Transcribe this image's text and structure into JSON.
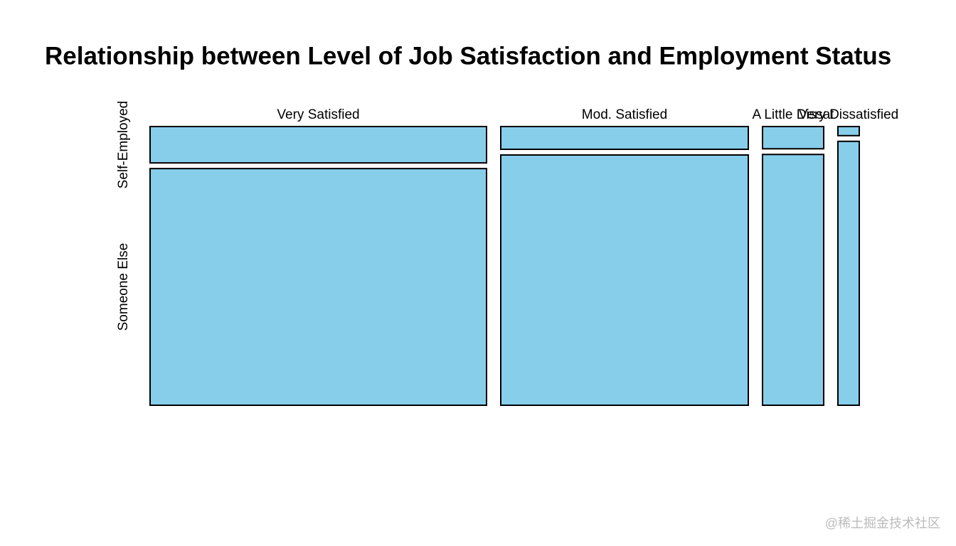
{
  "chart_data": {
    "type": "mosaic",
    "title": "Relationship between Level of Job Satisfaction and Employment Status",
    "categories": [
      "Very Satisfied",
      "Mod. Satisfied",
      "A Little Dissat",
      "Very Dissatisfied"
    ],
    "series": [
      {
        "name": "Self-Employed",
        "color": "#87ceeb",
        "values": [
          63,
          29,
          7,
          1
        ]
      },
      {
        "name": "Someone Else",
        "color": "#87ceeb",
        "values": [
          410,
          319,
          79,
          29
        ]
      }
    ]
  },
  "watermark": "@稀土掘金技术社区"
}
